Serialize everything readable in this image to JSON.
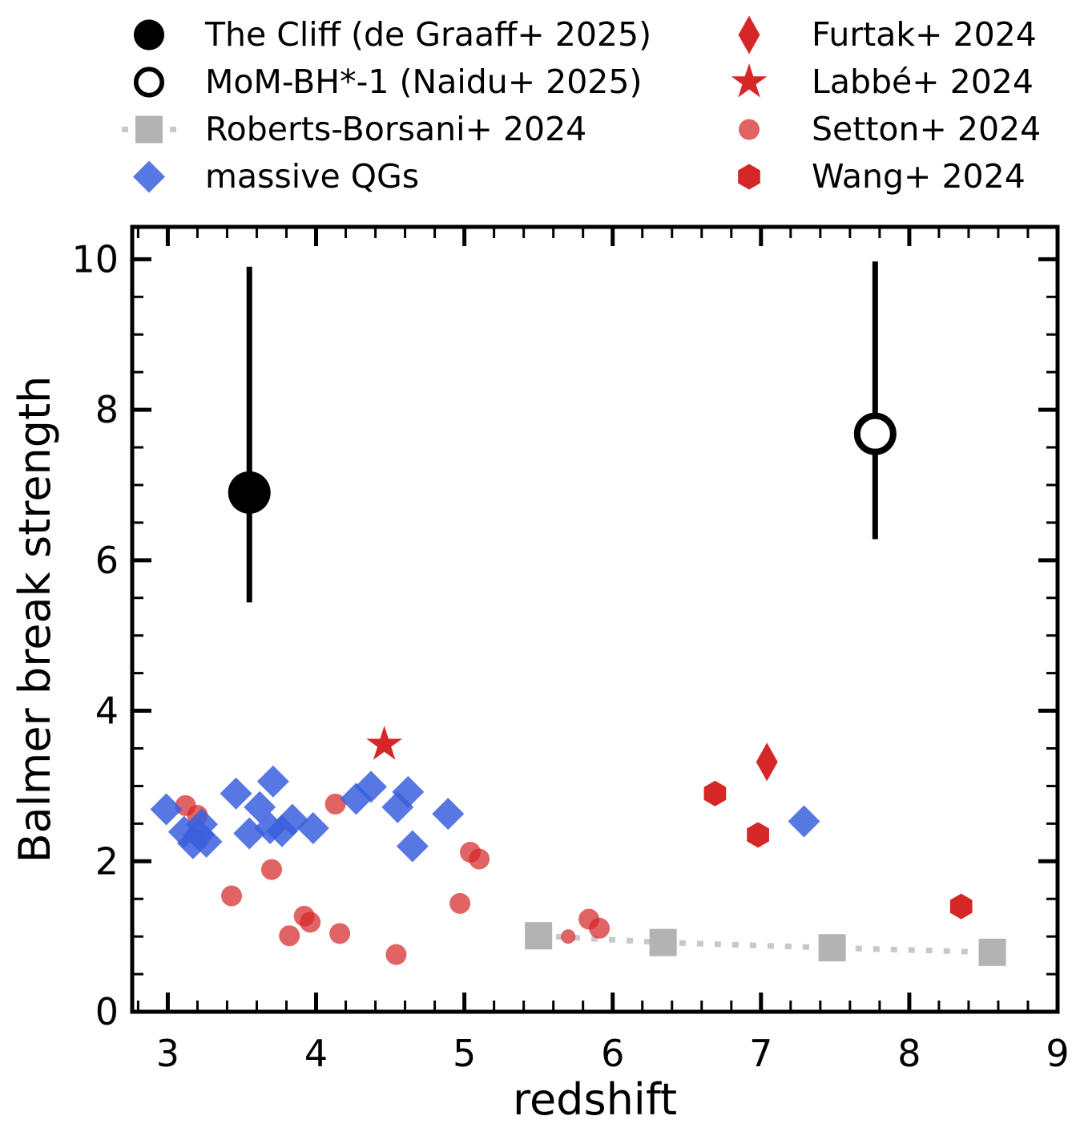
{
  "figure": {
    "background": "#ffffff"
  },
  "legend": {
    "position": "top, two columns, outside axes",
    "left_column_series": [
      0,
      1,
      2,
      3
    ],
    "right_column_series": [
      4,
      5,
      6,
      7
    ]
  },
  "chart_data": {
    "type": "scatter",
    "title": "",
    "xlabel": "redshift",
    "ylabel": "Balmer break strength",
    "xlim": [
      2.76,
      9.0
    ],
    "ylim": [
      0,
      10.43
    ],
    "xticks": [
      3,
      4,
      5,
      6,
      7,
      8,
      9
    ],
    "yticks": [
      0,
      2,
      4,
      6,
      8,
      10
    ],
    "x_minor_step": 0.2,
    "y_minor_step": 0.5,
    "grid": false,
    "colors": {
      "black": "#000000",
      "blue": "#3a5fdd",
      "red": "#d62728",
      "gray_marker": "#b3b3b3",
      "gray_line": "#c8c8c8"
    },
    "series": [
      {
        "name": "The Cliff (de Graaff+ 2025)",
        "marker": "filled-circle",
        "color": "#000000",
        "points": [
          {
            "x": 3.55,
            "y": 6.9,
            "y_err_lo": 5.44,
            "y_err_hi": 9.9
          }
        ]
      },
      {
        "name": "MoM-BH*-1 (Naidu+ 2025)",
        "marker": "open-circle",
        "color": "#000000",
        "points": [
          {
            "x": 7.77,
            "y": 7.68,
            "y_err_lo": 6.28,
            "y_err_hi": 9.97
          }
        ]
      },
      {
        "name": "Roberts-Borsani+ 2024",
        "marker": "square",
        "color": "#b3b3b3",
        "line": "dotted",
        "line_color": "#c8c8c8",
        "points": [
          {
            "x": 5.5,
            "y": 1.01
          },
          {
            "x": 6.34,
            "y": 0.92
          },
          {
            "x": 7.48,
            "y": 0.85
          },
          {
            "x": 8.56,
            "y": 0.79
          }
        ]
      },
      {
        "name": "massive QGs",
        "marker": "diamond",
        "color": "#3a5fdd",
        "opacity": 0.85,
        "points": [
          {
            "x": 2.99,
            "y": 2.69
          },
          {
            "x": 3.11,
            "y": 2.39
          },
          {
            "x": 3.17,
            "y": 2.24
          },
          {
            "x": 3.21,
            "y": 2.35
          },
          {
            "x": 3.23,
            "y": 2.49
          },
          {
            "x": 3.26,
            "y": 2.26
          },
          {
            "x": 3.46,
            "y": 2.9
          },
          {
            "x": 3.55,
            "y": 2.37
          },
          {
            "x": 3.62,
            "y": 2.72
          },
          {
            "x": 3.71,
            "y": 3.06
          },
          {
            "x": 3.69,
            "y": 2.44
          },
          {
            "x": 3.77,
            "y": 2.4
          },
          {
            "x": 3.84,
            "y": 2.55
          },
          {
            "x": 3.98,
            "y": 2.44
          },
          {
            "x": 4.27,
            "y": 2.83
          },
          {
            "x": 4.37,
            "y": 2.99
          },
          {
            "x": 4.55,
            "y": 2.72
          },
          {
            "x": 4.62,
            "y": 2.92
          },
          {
            "x": 4.65,
            "y": 2.2
          },
          {
            "x": 4.89,
            "y": 2.63
          },
          {
            "x": 7.29,
            "y": 2.53
          }
        ]
      },
      {
        "name": "Furtak+ 2024",
        "marker": "thin-diamond",
        "color": "#d62728",
        "points": [
          {
            "x": 7.04,
            "y": 3.32
          }
        ]
      },
      {
        "name": "Labbé+ 2024",
        "marker": "star",
        "color": "#d62728",
        "points": [
          {
            "x": 4.46,
            "y": 3.55
          }
        ]
      },
      {
        "name": "Setton+ 2024",
        "marker": "small-circle",
        "color": "#d62728",
        "opacity": 0.72,
        "points": [
          {
            "x": 3.12,
            "y": 2.74
          },
          {
            "x": 3.2,
            "y": 2.61
          },
          {
            "x": 3.43,
            "y": 1.54
          },
          {
            "x": 3.7,
            "y": 1.89
          },
          {
            "x": 3.82,
            "y": 1.01
          },
          {
            "x": 3.92,
            "y": 1.27
          },
          {
            "x": 3.96,
            "y": 1.19
          },
          {
            "x": 4.13,
            "y": 2.76
          },
          {
            "x": 4.16,
            "y": 1.04
          },
          {
            "x": 4.54,
            "y": 0.76
          },
          {
            "x": 4.97,
            "y": 1.44
          },
          {
            "x": 5.04,
            "y": 2.12
          },
          {
            "x": 5.1,
            "y": 2.03
          },
          {
            "x": 5.7,
            "y": 1.0,
            "size": "small"
          },
          {
            "x": 5.84,
            "y": 1.23
          },
          {
            "x": 5.91,
            "y": 1.11
          }
        ]
      },
      {
        "name": "Wang+ 2024",
        "marker": "hexagon",
        "color": "#d62728",
        "points": [
          {
            "x": 6.69,
            "y": 2.9
          },
          {
            "x": 6.98,
            "y": 2.35
          },
          {
            "x": 8.35,
            "y": 1.4
          }
        ]
      }
    ]
  }
}
